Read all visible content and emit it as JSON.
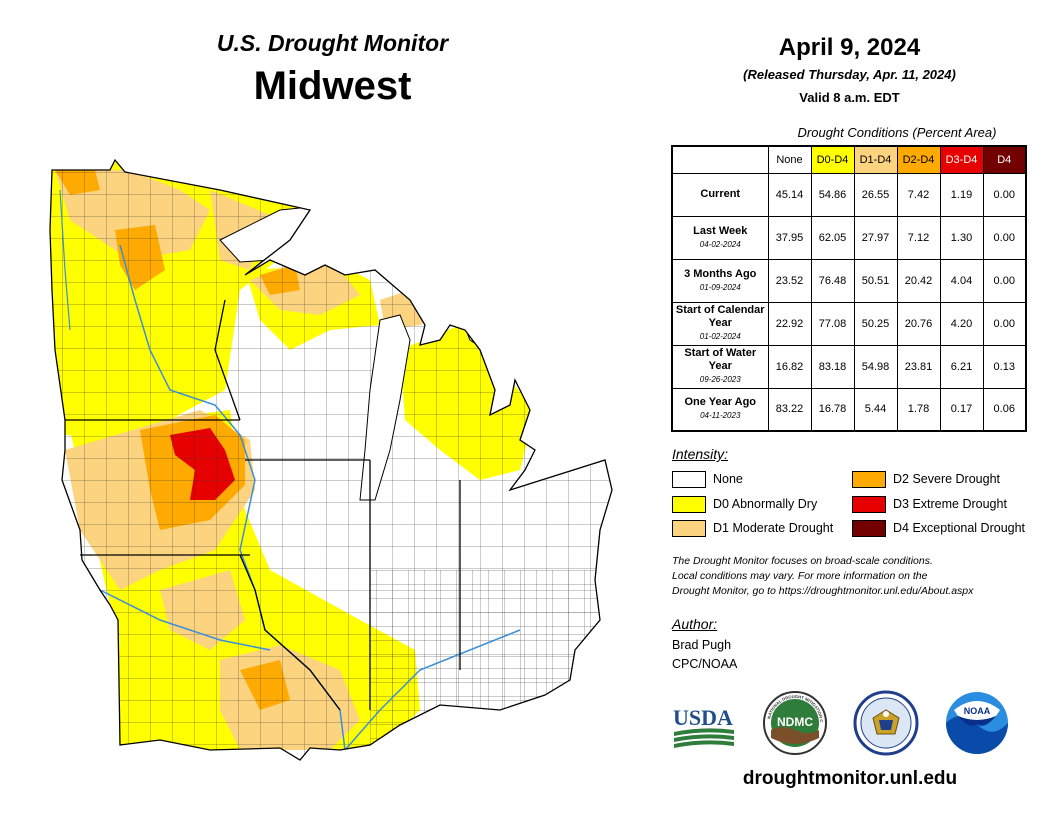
{
  "header": {
    "title": "U.S. Drought Monitor",
    "region": "Midwest"
  },
  "info": {
    "date": "April 9, 2024",
    "released": "(Released Thursday, Apr. 11, 2024)",
    "valid": "Valid 8 a.m. EDT"
  },
  "conditions": {
    "caption": "Drought Conditions (Percent Area)",
    "columns": [
      {
        "label": "None",
        "bg": "#ffffff",
        "fg": "#000000"
      },
      {
        "label": "D0-D4",
        "bg": "#ffff00",
        "fg": "#000000"
      },
      {
        "label": "D1-D4",
        "bg": "#fcd37f",
        "fg": "#000000"
      },
      {
        "label": "D2-D4",
        "bg": "#ffaa00",
        "fg": "#000000"
      },
      {
        "label": "D3-D4",
        "bg": "#e60000",
        "fg": "#ffffff"
      },
      {
        "label": "D4",
        "bg": "#730000",
        "fg": "#ffffff"
      }
    ],
    "rows": [
      {
        "label": "Current",
        "date": "",
        "values": [
          "45.14",
          "54.86",
          "26.55",
          "7.42",
          "1.19",
          "0.00"
        ]
      },
      {
        "label": "Last Week",
        "date": "04-02-2024",
        "values": [
          "37.95",
          "62.05",
          "27.97",
          "7.12",
          "1.30",
          "0.00"
        ]
      },
      {
        "label": "3 Months Ago",
        "date": "01-09-2024",
        "values": [
          "23.52",
          "76.48",
          "50.51",
          "20.42",
          "4.04",
          "0.00"
        ]
      },
      {
        "label": "Start of Calendar Year",
        "date": "01-02-2024",
        "values": [
          "22.92",
          "77.08",
          "50.25",
          "20.76",
          "4.20",
          "0.00"
        ]
      },
      {
        "label": "Start of Water Year",
        "date": "09-26-2023",
        "values": [
          "16.82",
          "83.18",
          "54.98",
          "23.81",
          "6.21",
          "0.13"
        ]
      },
      {
        "label": "One Year Ago",
        "date": "04-11-2023",
        "values": [
          "83.22",
          "16.78",
          "5.44",
          "1.78",
          "0.17",
          "0.06"
        ]
      }
    ]
  },
  "legend": {
    "heading": "Intensity:",
    "items": [
      {
        "label": "None",
        "color": "#ffffff"
      },
      {
        "label": "D0 Abnormally Dry",
        "color": "#ffff00"
      },
      {
        "label": "D1 Moderate Drought",
        "color": "#fcd37f"
      },
      {
        "label": "D2 Severe Drought",
        "color": "#ffaa00"
      },
      {
        "label": "D3 Extreme Drought",
        "color": "#e60000"
      },
      {
        "label": "D4 Exceptional Drought",
        "color": "#730000"
      }
    ]
  },
  "disclaimer": {
    "line1": "The Drought Monitor focuses on broad-scale conditions.",
    "line2": "Local conditions may vary. For more information on the",
    "line3": "Drought Monitor, go to https://droughtmonitor.unl.edu/About.aspx"
  },
  "author": {
    "heading": "Author:",
    "name": "Brad Pugh",
    "org": "CPC/NOAA"
  },
  "logos": {
    "usda": "USDA",
    "ndmc": "NDMC",
    "noaa": "NOAA",
    "ndmc_ring": "NATIONAL DROUGHT MITIGATION CENTER"
  },
  "map": {
    "icons": [
      "drought-map"
    ],
    "colors": {
      "none": "#ffffff",
      "d0": "#ffff00",
      "d1": "#fcd37f",
      "d2": "#ffaa00",
      "d3": "#e60000",
      "d4": "#730000",
      "water": "#67b7e8"
    }
  },
  "footer": {
    "website": "droughtmonitor.unl.edu"
  }
}
